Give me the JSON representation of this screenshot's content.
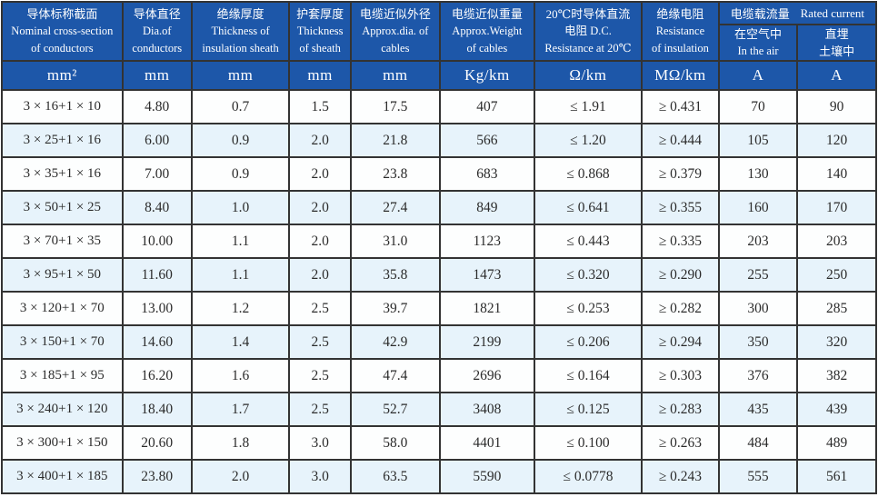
{
  "table_title": "cable-specification-table",
  "colors": {
    "header_bg": "#1d57a9",
    "header_text": "#ffffff",
    "stripe_bg": "#e7f3fb",
    "border": "#333333",
    "body_text": "#2b2b2b"
  },
  "header": {
    "cols": [
      {
        "lines": [
          "导体标称截面",
          "Nominal cross-section",
          "of conductors"
        ]
      },
      {
        "lines": [
          "导体直径",
          "Dia.of",
          "conductors"
        ]
      },
      {
        "lines": [
          "绝缘厚度",
          "Thickness of",
          "insulation sheath"
        ]
      },
      {
        "lines": [
          "护套厚度",
          "Thickness",
          "of sheath"
        ]
      },
      {
        "lines": [
          "电缆近似外径",
          "Approx.dia. of",
          "cables"
        ]
      },
      {
        "lines": [
          "电缆近似重量",
          "Approx.Weight",
          "of cables"
        ]
      },
      {
        "lines": [
          "20℃时导体直流",
          "电阻 D.C.",
          "Resistance at 20℃"
        ]
      },
      {
        "lines": [
          "绝缘电阻",
          "Resistance",
          "of insulation"
        ]
      }
    ],
    "rated_current": {
      "zh": "电缆载流量",
      "en": "Rated current",
      "sub": [
        {
          "lines": [
            "在空气中",
            "In the air"
          ]
        },
        {
          "lines": [
            "直埋",
            "土壤中"
          ]
        }
      ]
    }
  },
  "units": [
    "mm²",
    "mm",
    "mm",
    "mm",
    "mm",
    "Kg/km",
    "Ω/km",
    "MΩ/km",
    "A",
    "A"
  ],
  "rows": [
    [
      "3 × 16+1 × 10",
      "4.80",
      "0.7",
      "1.5",
      "17.5",
      "407",
      "≤ 1.91",
      "≥ 0.431",
      "70",
      "90"
    ],
    [
      "3 × 25+1 × 16",
      "6.00",
      "0.9",
      "2.0",
      "21.8",
      "566",
      "≤ 1.20",
      "≥ 0.444",
      "105",
      "120"
    ],
    [
      "3 × 35+1 × 16",
      "7.00",
      "0.9",
      "2.0",
      "23.8",
      "683",
      "≤ 0.868",
      "≥ 0.379",
      "130",
      "140"
    ],
    [
      "3 × 50+1 × 25",
      "8.40",
      "1.0",
      "2.0",
      "27.4",
      "849",
      "≤ 0.641",
      "≥ 0.355",
      "160",
      "170"
    ],
    [
      "3 × 70+1 × 35",
      "10.00",
      "1.1",
      "2.0",
      "31.0",
      "1123",
      "≤ 0.443",
      "≥ 0.335",
      "203",
      "203"
    ],
    [
      "3 × 95+1 × 50",
      "11.60",
      "1.1",
      "2.0",
      "35.8",
      "1473",
      "≤ 0.320",
      "≥ 0.290",
      "255",
      "250"
    ],
    [
      "3 × 120+1 × 70",
      "13.00",
      "1.2",
      "2.5",
      "39.7",
      "1821",
      "≤ 0.253",
      "≥ 0.282",
      "300",
      "285"
    ],
    [
      "3 × 150+1 × 70",
      "14.60",
      "1.4",
      "2.5",
      "42.9",
      "2199",
      "≤ 0.206",
      "≥ 0.294",
      "350",
      "320"
    ],
    [
      "3 × 185+1 × 95",
      "16.20",
      "1.6",
      "2.5",
      "47.4",
      "2696",
      "≤ 0.164",
      "≥ 0.303",
      "376",
      "382"
    ],
    [
      "3 × 240+1 × 120",
      "18.40",
      "1.7",
      "2.5",
      "52.7",
      "3408",
      "≤ 0.125",
      "≥ 0.283",
      "435",
      "439"
    ],
    [
      "3 × 300+1 × 150",
      "20.60",
      "1.8",
      "3.0",
      "58.0",
      "4401",
      "≤ 0.100",
      "≥ 0.263",
      "484",
      "489"
    ],
    [
      "3 × 400+1 × 185",
      "23.80",
      "2.0",
      "3.0",
      "63.5",
      "5590",
      "≤ 0.0778",
      "≥ 0.243",
      "555",
      "561"
    ]
  ]
}
